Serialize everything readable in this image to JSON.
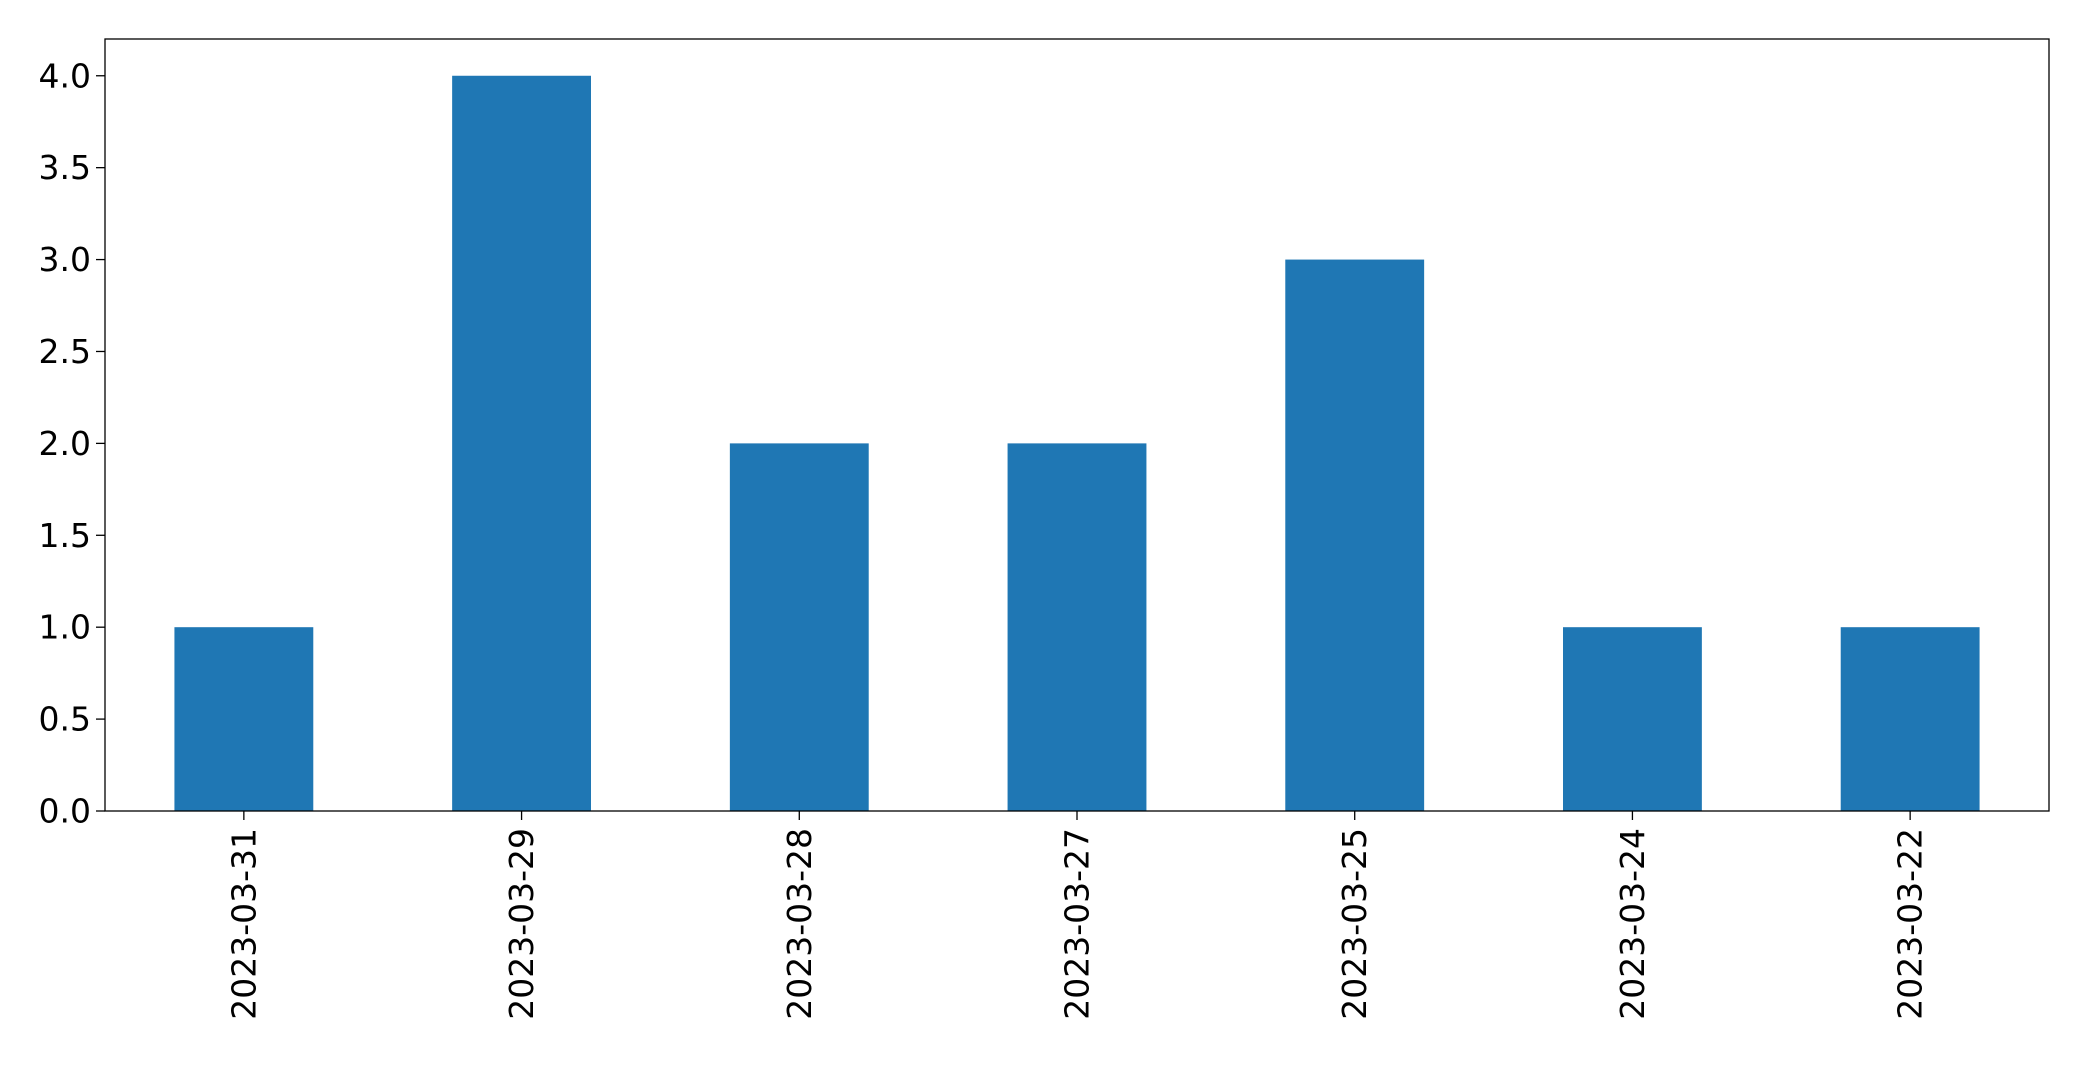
{
  "chart_data": {
    "type": "bar",
    "title": "",
    "xlabel": "",
    "ylabel": "",
    "categories": [
      "2023-03-31",
      "2023-03-29",
      "2023-03-28",
      "2023-03-27",
      "2023-03-25",
      "2023-03-24",
      "2023-03-22"
    ],
    "values": [
      1,
      4,
      2,
      2,
      3,
      1,
      1
    ],
    "ylim": [
      0,
      4.2
    ],
    "yticks": [
      "0.0",
      "0.5",
      "1.0",
      "1.5",
      "2.0",
      "2.5",
      "3.0",
      "3.5",
      "4.0"
    ],
    "bar_color": "#1f77b4",
    "grid": false,
    "legend": "none",
    "x_tick_rotation": "vertical"
  }
}
